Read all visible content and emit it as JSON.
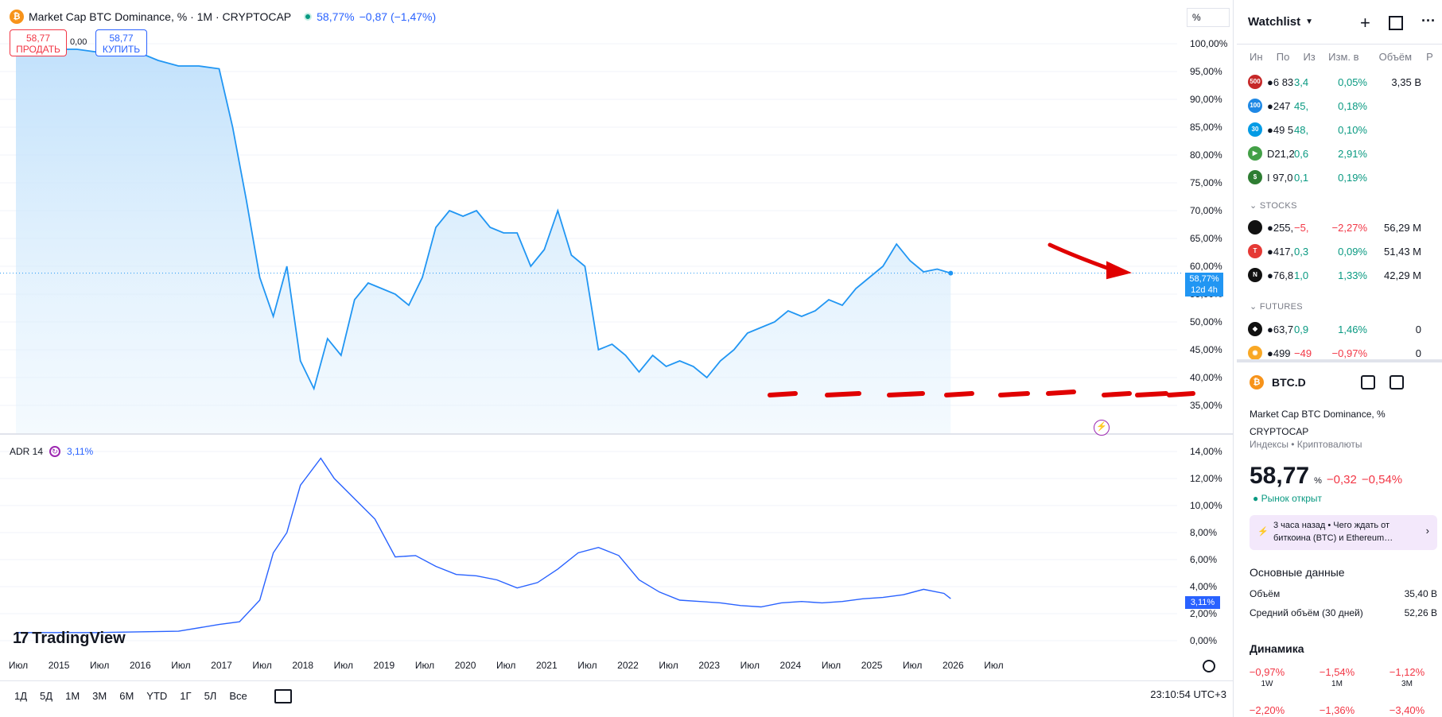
{
  "header": {
    "coin_icon": "₿",
    "title": "Market Cap BTC Dominance, % · 1M · CRYPTOCAP",
    "value": "58,77%",
    "change": "−0,87 (−1,47%)"
  },
  "trade": {
    "sell_price": "58,77",
    "sell_label": "ПРОДАТЬ",
    "spread": "0,00",
    "buy_price": "58,77",
    "buy_label": "КУПИТЬ"
  },
  "scale_mode": "%",
  "price_axis": [
    "100,00%",
    "95,00%",
    "90,00%",
    "85,00%",
    "80,00%",
    "75,00%",
    "70,00%",
    "65,00%",
    "60,00%",
    "55,00%",
    "50,00%",
    "45,00%",
    "40,00%",
    "35,00%"
  ],
  "price_tag": {
    "value": "58,77%",
    "countdown": "12d 4h"
  },
  "adr": {
    "label": "ADR 14",
    "value": "3,11%"
  },
  "adr_axis": [
    "14,00%",
    "12,00%",
    "10,00%",
    "8,00%",
    "6,00%",
    "4,00%",
    "2,00%",
    "0,00%"
  ],
  "adr_tag": "3,11%",
  "time_axis": [
    "Июл",
    "2015",
    "Июл",
    "2016",
    "Июл",
    "2017",
    "Июл",
    "2018",
    "Июл",
    "2019",
    "Июл",
    "2020",
    "Июл",
    "2021",
    "Июл",
    "2022",
    "Июл",
    "2023",
    "Июл",
    "2024",
    "Июл",
    "2025",
    "Июл",
    "2026",
    "Июл"
  ],
  "ranges": [
    "1Д",
    "5Д",
    "1М",
    "3М",
    "6М",
    "YTD",
    "1Г",
    "5Л",
    "Все"
  ],
  "clock": "23:10:54 UTC+3",
  "logo": {
    "mark": "17",
    "text": "TradingView"
  },
  "colors": {
    "line": "#2196f3",
    "adr": "#2962ff",
    "annotation": "#e00000",
    "positive": "#089981",
    "negative": "#f23645"
  },
  "chart_data": [
    {
      "type": "area",
      "title": "Market Cap BTC Dominance, %",
      "x": [
        "2014-07",
        "2014-10",
        "2015-01",
        "2015-04",
        "2015-07",
        "2015-10",
        "2016-01",
        "2016-04",
        "2016-07",
        "2016-10",
        "2017-01",
        "2017-03",
        "2017-05",
        "2017-07",
        "2017-09",
        "2017-11",
        "2018-01",
        "2018-03",
        "2018-05",
        "2018-07",
        "2018-09",
        "2018-11",
        "2019-01",
        "2019-03",
        "2019-05",
        "2019-07",
        "2019-09",
        "2019-11",
        "2020-01",
        "2020-03",
        "2020-05",
        "2020-07",
        "2020-09",
        "2020-11",
        "2021-01",
        "2021-03",
        "2021-05",
        "2021-07",
        "2021-09",
        "2021-11",
        "2022-01",
        "2022-03",
        "2022-05",
        "2022-07",
        "2022-09",
        "2022-11",
        "2023-01",
        "2023-03",
        "2023-05",
        "2023-07",
        "2023-09",
        "2023-11",
        "2024-01",
        "2024-03",
        "2024-05",
        "2024-07",
        "2024-09",
        "2024-11",
        "2025-01",
        "2025-03",
        "2025-05",
        "2025-07",
        "2025-09",
        "2025-11",
        "2026-01"
      ],
      "values": [
        99,
        99,
        99,
        99,
        98.5,
        98,
        98.5,
        97,
        96,
        96,
        95.5,
        85,
        72,
        58,
        51,
        60,
        43,
        38,
        47,
        44,
        54,
        57,
        56,
        55,
        53,
        58,
        67,
        70,
        69,
        70,
        67,
        66,
        66,
        60,
        63,
        70,
        62,
        60,
        45,
        46,
        44,
        41,
        44,
        42,
        43,
        42,
        40,
        43,
        45,
        48,
        49,
        50,
        52,
        51,
        52,
        54,
        53,
        56,
        58,
        60,
        64,
        61,
        59,
        59.5,
        58.77
      ],
      "ylim": [
        33,
        101
      ],
      "ylabel": "%"
    },
    {
      "type": "line",
      "title": "ADR 14",
      "x": [
        "2014-07",
        "2015-07",
        "2016-07",
        "2017-01",
        "2017-04",
        "2017-07",
        "2017-09",
        "2017-11",
        "2018-01",
        "2018-04",
        "2018-06",
        "2018-09",
        "2018-12",
        "2019-03",
        "2019-06",
        "2019-09",
        "2019-12",
        "2020-03",
        "2020-06",
        "2020-09",
        "2020-12",
        "2021-03",
        "2021-06",
        "2021-09",
        "2021-12",
        "2022-03",
        "2022-06",
        "2022-09",
        "2022-12",
        "2023-03",
        "2023-06",
        "2023-09",
        "2023-12",
        "2024-03",
        "2024-06",
        "2024-09",
        "2024-12",
        "2025-03",
        "2025-06",
        "2025-09",
        "2025-12",
        "2026-01"
      ],
      "values": [
        0.6,
        0.6,
        0.7,
        1.2,
        1.4,
        3.0,
        6.5,
        8.0,
        11.5,
        13.5,
        12.0,
        10.5,
        9.0,
        6.2,
        6.3,
        5.5,
        4.9,
        4.8,
        4.5,
        3.9,
        4.3,
        5.3,
        6.5,
        6.9,
        6.3,
        4.5,
        3.6,
        3.0,
        2.9,
        2.8,
        2.6,
        2.5,
        2.8,
        2.9,
        2.8,
        2.9,
        3.1,
        3.2,
        3.4,
        3.8,
        3.5,
        3.11
      ],
      "ylim": [
        0,
        14
      ]
    }
  ],
  "watchlist": {
    "title": "Watchlist",
    "columns": [
      "Ин",
      "По",
      "Из",
      "Изм. в",
      "Объём",
      "Р"
    ],
    "rows": [
      {
        "icon": "500",
        "icon_color": "#c62828",
        "sym": "●6 83",
        "last": "3,4",
        "chg": "0,05%",
        "vol": "3,35 B",
        "dir": "pos"
      },
      {
        "icon": "100",
        "icon_color": "#1e88e5",
        "sym": "●247",
        "last": "45,",
        "chg": "0,18%",
        "vol": "",
        "dir": "pos"
      },
      {
        "icon": "30",
        "icon_color": "#039be5",
        "sym": "●49 5",
        "last": "48,",
        "chg": "0,10%",
        "vol": "",
        "dir": "pos"
      },
      {
        "icon": "▶",
        "icon_color": "#43a047",
        "sym": "D21,2",
        "last": "0,6",
        "chg": "2,91%",
        "vol": "",
        "dir": "pos"
      },
      {
        "icon": "$",
        "icon_color": "#2e7d32",
        "sym": "I 97,0",
        "last": "0,1",
        "chg": "0,19%",
        "vol": "",
        "dir": "pos"
      }
    ],
    "stocks_label": "STOCKS",
    "stocks": [
      {
        "icon": "",
        "icon_color": "#111111",
        "sym": "●255,",
        "last": "−5,",
        "chg": "−2,27%",
        "vol": "56,29 M",
        "dir": "neg"
      },
      {
        "icon": "T",
        "icon_color": "#e53935",
        "sym": "●417,",
        "last": "0,3",
        "chg": "0,09%",
        "vol": "51,43 M",
        "dir": "pos"
      },
      {
        "icon": "N",
        "icon_color": "#111111",
        "sym": "●76,8",
        "last": "1,0",
        "chg": "1,33%",
        "vol": "42,29 M",
        "dir": "pos"
      }
    ],
    "futures_label": "FUTURES",
    "futures": [
      {
        "icon": "◆",
        "icon_color": "#111111",
        "sym": "●63,7",
        "last": "0,9",
        "chg": "1,46%",
        "vol": "0",
        "dir": "pos"
      },
      {
        "icon": "◉",
        "icon_color": "#f9a825",
        "sym": "●499",
        "last": "−49",
        "chg": "−0,97%",
        "vol": "0",
        "dir": "neg"
      }
    ]
  },
  "details": {
    "symbol": "BTC.D",
    "name_line1": "Market Cap BTC Dominance, %",
    "name_line2": "CRYPTOCAP",
    "category": "Индексы • Криптовалюты",
    "price": "58,77",
    "unit": "%",
    "change": "−0,32",
    "change_pct": "−0,54%",
    "status": "● Рынок открыт",
    "news_line1": "3 часа назад • Чего ждать от",
    "news_line2": "биткоина (BTC) и Ethereum…",
    "fund_title": "Основные данные",
    "volume_label": "Объём",
    "volume_value": "35,40 B",
    "avg_label": "Средний объём (30 дней)",
    "avg_value": "52,26 B",
    "dyn_title": "Динамика",
    "dyn": [
      {
        "val": "−0,97%",
        "per": "1W"
      },
      {
        "val": "−1,54%",
        "per": "1M"
      },
      {
        "val": "−1,12%",
        "per": "3M"
      }
    ],
    "dyn_row2": [
      "−2,20%",
      "−1,36%",
      "−3,40%"
    ]
  }
}
